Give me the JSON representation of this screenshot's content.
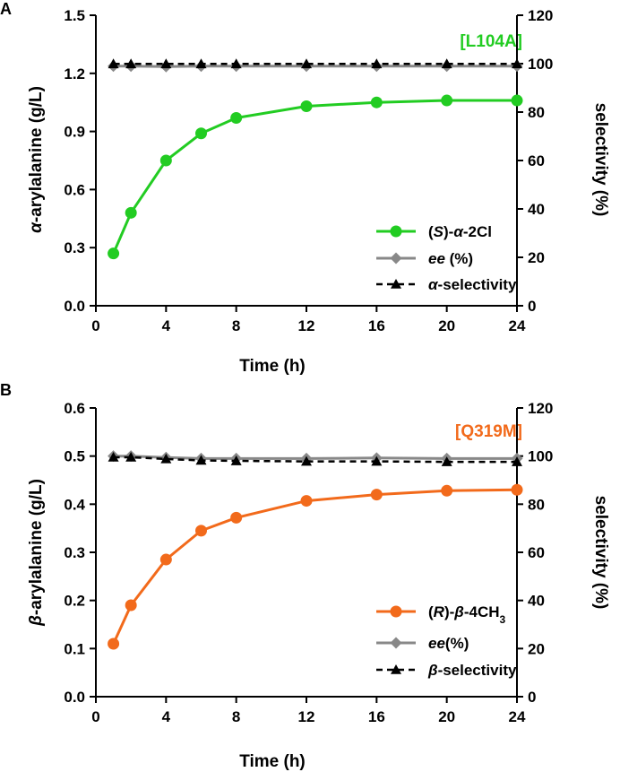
{
  "chart_data": [
    {
      "type": "line",
      "panel": "A",
      "variant_label": "[L104A]",
      "variant_color": "#22cc22",
      "xlabel": "Time (h)",
      "ylabel_left": "α-arylalanine (g/L)",
      "ylabel_right": "selectivity (%)",
      "xlim": [
        0,
        24
      ],
      "xticks": [
        0,
        4,
        8,
        12,
        16,
        20,
        24
      ],
      "ylim_left": [
        0,
        1.5
      ],
      "yticks_left": [
        "0.0",
        "0.3",
        "0.6",
        "0.9",
        "1.2",
        "1.5"
      ],
      "ylim_right": [
        0,
        120
      ],
      "yticks_right": [
        "0",
        "20",
        "40",
        "60",
        "80",
        "100",
        "120"
      ],
      "series": [
        {
          "name": "(S)-α-2Cl",
          "legend_parts": [
            {
              "text": "(",
              "italic": false
            },
            {
              "text": "S",
              "italic": true
            },
            {
              "text": ")-",
              "italic": false
            },
            {
              "text": "α",
              "italic": true
            },
            {
              "text": "-2Cl",
              "italic": false
            }
          ],
          "axis": "left",
          "color": "#22cc22",
          "marker": "circle",
          "style": "solid",
          "x": [
            1,
            2,
            4,
            6,
            8,
            12,
            16,
            20,
            24
          ],
          "values": [
            0.27,
            0.48,
            0.75,
            0.89,
            0.97,
            1.03,
            1.05,
            1.06,
            1.06
          ]
        },
        {
          "name": "ee (%)",
          "legend_parts": [
            {
              "text": "ee",
              "italic": true
            },
            {
              "text": " (%)",
              "italic": false
            }
          ],
          "axis": "right",
          "color": "#888888",
          "marker": "diamond",
          "style": "solid",
          "x": [
            1,
            2,
            4,
            6,
            8,
            12,
            16,
            20,
            24
          ],
          "values": [
            99,
            99,
            98.8,
            99,
            99,
            99,
            99,
            99,
            99
          ]
        },
        {
          "name": "α-selectivity",
          "legend_parts": [
            {
              "text": "α",
              "italic": true
            },
            {
              "text": "-selectivity",
              "italic": false
            }
          ],
          "axis": "right",
          "color": "#000000",
          "marker": "triangle",
          "style": "dashed",
          "x": [
            1,
            2,
            4,
            6,
            8,
            12,
            16,
            20,
            24
          ],
          "values": [
            99.9,
            99.9,
            99.9,
            99.9,
            99.9,
            99.9,
            99.9,
            99.9,
            99.9
          ]
        }
      ]
    },
    {
      "type": "line",
      "panel": "B",
      "variant_label": "[Q319M]",
      "variant_color": "#f26a1b",
      "xlabel": "Time (h)",
      "ylabel_left": "β-arylalanine (g/L)",
      "ylabel_right": "selectivity (%)",
      "xlim": [
        0,
        24
      ],
      "xticks": [
        0,
        4,
        8,
        12,
        16,
        20,
        24
      ],
      "ylim_left": [
        0,
        0.6
      ],
      "yticks_left": [
        "0.0",
        "0.1",
        "0.2",
        "0.3",
        "0.4",
        "0.5",
        "0.6"
      ],
      "ylim_right": [
        0,
        120
      ],
      "yticks_right": [
        "0",
        "20",
        "40",
        "60",
        "80",
        "100",
        "120"
      ],
      "series": [
        {
          "name": "(R)-β-4CH3",
          "legend_parts": [
            {
              "text": "(",
              "italic": false
            },
            {
              "text": "R",
              "italic": true
            },
            {
              "text": ")-",
              "italic": false
            },
            {
              "text": "β",
              "italic": true
            },
            {
              "text": "-4CH",
              "italic": false
            },
            {
              "text": "3",
              "italic": false,
              "sub": true
            }
          ],
          "axis": "left",
          "color": "#f26a1b",
          "marker": "circle",
          "style": "solid",
          "x": [
            1,
            2,
            4,
            6,
            8,
            12,
            16,
            20,
            24
          ],
          "values": [
            0.11,
            0.19,
            0.285,
            0.345,
            0.372,
            0.407,
            0.42,
            0.428,
            0.43
          ]
        },
        {
          "name": "ee(%)",
          "legend_parts": [
            {
              "text": "ee",
              "italic": true
            },
            {
              "text": "(%)",
              "italic": false
            }
          ],
          "axis": "right",
          "color": "#888888",
          "marker": "diamond",
          "style": "solid",
          "x": [
            1,
            2,
            4,
            6,
            8,
            12,
            16,
            20,
            24
          ],
          "values": [
            100,
            100,
            99.4,
            99,
            99,
            99,
            99.2,
            99,
            99
          ]
        },
        {
          "name": "β-selectivity",
          "legend_parts": [
            {
              "text": "β",
              "italic": true
            },
            {
              "text": "-selectivity",
              "italic": false
            }
          ],
          "axis": "right",
          "color": "#000000",
          "marker": "triangle",
          "style": "dashed",
          "x": [
            1,
            2,
            4,
            6,
            8,
            12,
            16,
            20,
            24
          ],
          "values": [
            99.5,
            99.5,
            98.8,
            98.2,
            98,
            97.8,
            97.8,
            97.6,
            97.6
          ]
        }
      ]
    }
  ]
}
